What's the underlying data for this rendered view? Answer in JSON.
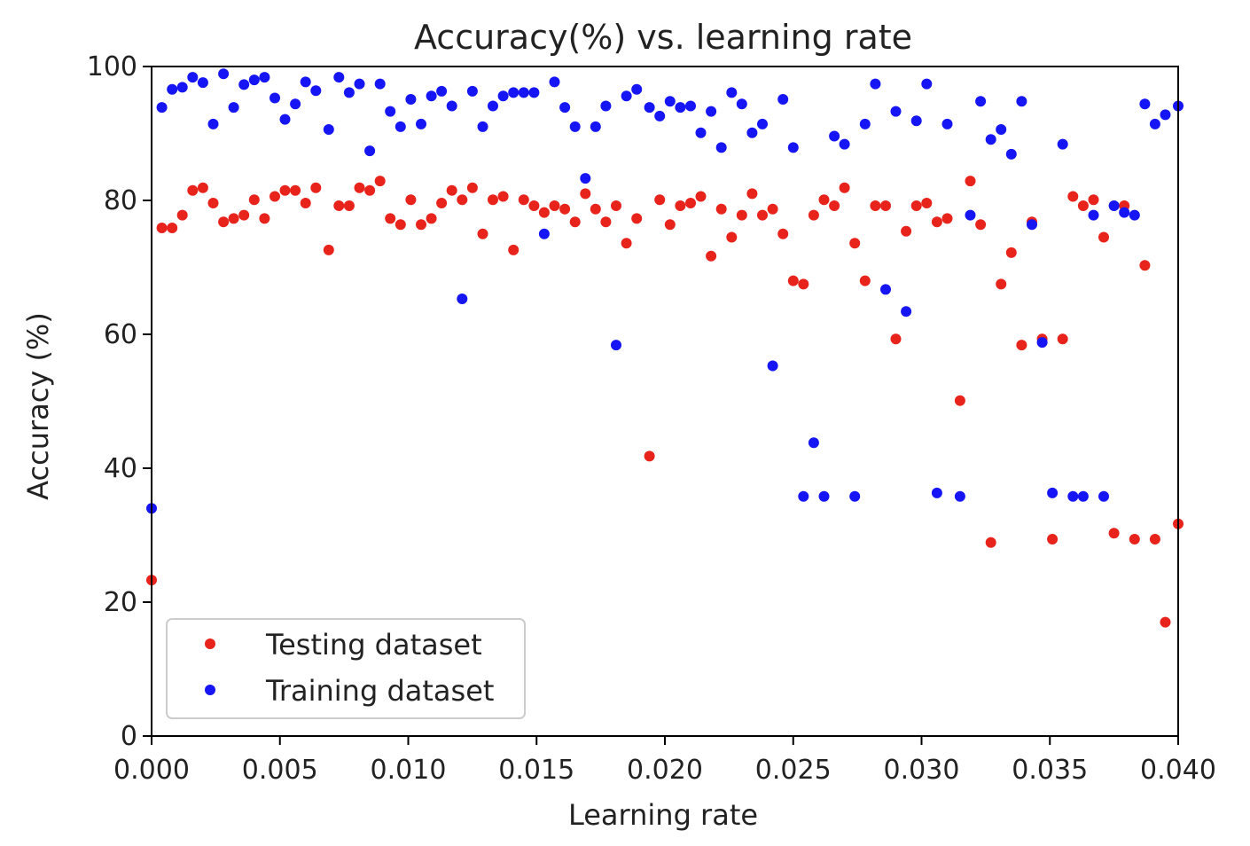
{
  "chart_data": {
    "type": "scatter",
    "title": "Accuracy(%) vs. learning rate",
    "xlabel": "Learning rate",
    "ylabel": "Accuracy (%)",
    "xlim": [
      0,
      0.04
    ],
    "ylim": [
      0,
      100
    ],
    "x_ticks": [
      "0.000",
      "0.005",
      "0.010",
      "0.015",
      "0.020",
      "0.025",
      "0.030",
      "0.035",
      "0.040"
    ],
    "y_ticks": [
      "0",
      "20",
      "40",
      "60",
      "80",
      "100"
    ],
    "grid": false,
    "legend_position": "lower-left",
    "series": [
      {
        "name": "Testing dataset",
        "color": "#e8231c",
        "points": [
          [
            0.0,
            23.3
          ],
          [
            0.0004,
            75.9
          ],
          [
            0.0008,
            75.9
          ],
          [
            0.0012,
            77.8
          ],
          [
            0.0016,
            81.5
          ],
          [
            0.002,
            81.9
          ],
          [
            0.0024,
            79.6
          ],
          [
            0.0028,
            76.8
          ],
          [
            0.0032,
            77.3
          ],
          [
            0.0036,
            77.8
          ],
          [
            0.004,
            80.1
          ],
          [
            0.0044,
            77.3
          ],
          [
            0.0048,
            80.6
          ],
          [
            0.0052,
            81.5
          ],
          [
            0.0056,
            81.5
          ],
          [
            0.006,
            79.6
          ],
          [
            0.0064,
            81.9
          ],
          [
            0.0069,
            72.6
          ],
          [
            0.0073,
            79.2
          ],
          [
            0.0077,
            79.2
          ],
          [
            0.0081,
            81.9
          ],
          [
            0.0085,
            81.5
          ],
          [
            0.0089,
            82.9
          ],
          [
            0.0093,
            77.3
          ],
          [
            0.0097,
            76.4
          ],
          [
            0.0101,
            80.1
          ],
          [
            0.0105,
            76.4
          ],
          [
            0.0109,
            77.3
          ],
          [
            0.0113,
            79.6
          ],
          [
            0.0117,
            81.5
          ],
          [
            0.0121,
            80.1
          ],
          [
            0.0125,
            81.9
          ],
          [
            0.0129,
            75.0
          ],
          [
            0.0133,
            80.1
          ],
          [
            0.0137,
            80.6
          ],
          [
            0.0141,
            72.6
          ],
          [
            0.0145,
            80.1
          ],
          [
            0.0149,
            79.2
          ],
          [
            0.0153,
            78.2
          ],
          [
            0.0157,
            79.2
          ],
          [
            0.0161,
            78.7
          ],
          [
            0.0165,
            76.8
          ],
          [
            0.0169,
            81.0
          ],
          [
            0.0173,
            78.7
          ],
          [
            0.0177,
            76.8
          ],
          [
            0.0181,
            79.2
          ],
          [
            0.0185,
            73.6
          ],
          [
            0.0189,
            77.3
          ],
          [
            0.0194,
            41.8
          ],
          [
            0.0198,
            80.1
          ],
          [
            0.0202,
            76.4
          ],
          [
            0.0206,
            79.2
          ],
          [
            0.021,
            79.6
          ],
          [
            0.0214,
            80.6
          ],
          [
            0.0218,
            71.7
          ],
          [
            0.0222,
            78.7
          ],
          [
            0.0226,
            74.5
          ],
          [
            0.023,
            77.8
          ],
          [
            0.0234,
            81.0
          ],
          [
            0.0238,
            77.8
          ],
          [
            0.0242,
            78.7
          ],
          [
            0.0246,
            75.0
          ],
          [
            0.025,
            68.0
          ],
          [
            0.0254,
            67.5
          ],
          [
            0.0258,
            77.8
          ],
          [
            0.0262,
            80.1
          ],
          [
            0.0266,
            79.2
          ],
          [
            0.027,
            81.9
          ],
          [
            0.0274,
            73.6
          ],
          [
            0.0278,
            68.0
          ],
          [
            0.0282,
            79.2
          ],
          [
            0.0286,
            79.2
          ],
          [
            0.029,
            59.3
          ],
          [
            0.0294,
            75.4
          ],
          [
            0.0298,
            79.2
          ],
          [
            0.0302,
            79.6
          ],
          [
            0.0306,
            76.8
          ],
          [
            0.031,
            77.3
          ],
          [
            0.0315,
            50.1
          ],
          [
            0.0319,
            82.9
          ],
          [
            0.0323,
            76.4
          ],
          [
            0.0327,
            28.9
          ],
          [
            0.0331,
            67.5
          ],
          [
            0.0335,
            72.2
          ],
          [
            0.0339,
            58.4
          ],
          [
            0.0343,
            76.8
          ],
          [
            0.0347,
            59.3
          ],
          [
            0.0351,
            29.4
          ],
          [
            0.0355,
            59.3
          ],
          [
            0.0359,
            80.6
          ],
          [
            0.0363,
            79.2
          ],
          [
            0.0367,
            80.1
          ],
          [
            0.0371,
            74.5
          ],
          [
            0.0375,
            30.3
          ],
          [
            0.0379,
            79.2
          ],
          [
            0.0383,
            29.4
          ],
          [
            0.0387,
            70.3
          ],
          [
            0.0391,
            29.4
          ],
          [
            0.0395,
            17.0
          ],
          [
            0.04,
            31.7
          ]
        ]
      },
      {
        "name": "Training dataset",
        "color": "#1515f5",
        "points": [
          [
            0.0,
            34.0
          ],
          [
            0.0004,
            93.9
          ],
          [
            0.0008,
            96.6
          ],
          [
            0.0012,
            96.9
          ],
          [
            0.0016,
            98.4
          ],
          [
            0.002,
            97.6
          ],
          [
            0.0024,
            91.4
          ],
          [
            0.0028,
            98.9
          ],
          [
            0.0032,
            93.9
          ],
          [
            0.0036,
            97.3
          ],
          [
            0.004,
            98.0
          ],
          [
            0.0044,
            98.4
          ],
          [
            0.0048,
            95.3
          ],
          [
            0.0052,
            92.1
          ],
          [
            0.0056,
            94.4
          ],
          [
            0.006,
            97.7
          ],
          [
            0.0064,
            96.4
          ],
          [
            0.0069,
            90.6
          ],
          [
            0.0073,
            98.4
          ],
          [
            0.0077,
            96.1
          ],
          [
            0.0081,
            97.4
          ],
          [
            0.0085,
            87.4
          ],
          [
            0.0089,
            97.4
          ],
          [
            0.0093,
            93.3
          ],
          [
            0.0097,
            91.0
          ],
          [
            0.0101,
            95.1
          ],
          [
            0.0105,
            91.4
          ],
          [
            0.0109,
            95.6
          ],
          [
            0.0113,
            96.3
          ],
          [
            0.0117,
            94.1
          ],
          [
            0.0121,
            65.3
          ],
          [
            0.0125,
            96.3
          ],
          [
            0.0129,
            91.0
          ],
          [
            0.0133,
            94.1
          ],
          [
            0.0137,
            95.6
          ],
          [
            0.0141,
            96.1
          ],
          [
            0.0145,
            96.1
          ],
          [
            0.0149,
            96.1
          ],
          [
            0.0153,
            75.0
          ],
          [
            0.0157,
            97.7
          ],
          [
            0.0161,
            93.9
          ],
          [
            0.0165,
            91.0
          ],
          [
            0.0169,
            83.3
          ],
          [
            0.0173,
            91.0
          ],
          [
            0.0177,
            94.1
          ],
          [
            0.0181,
            58.4
          ],
          [
            0.0185,
            95.6
          ],
          [
            0.0189,
            96.6
          ],
          [
            0.0194,
            93.9
          ],
          [
            0.0198,
            92.6
          ],
          [
            0.0202,
            94.8
          ],
          [
            0.0206,
            93.9
          ],
          [
            0.021,
            94.1
          ],
          [
            0.0214,
            90.1
          ],
          [
            0.0218,
            93.3
          ],
          [
            0.0222,
            87.9
          ],
          [
            0.0226,
            96.1
          ],
          [
            0.023,
            94.4
          ],
          [
            0.0234,
            90.1
          ],
          [
            0.0238,
            91.4
          ],
          [
            0.0242,
            55.3
          ],
          [
            0.0246,
            95.1
          ],
          [
            0.025,
            87.9
          ],
          [
            0.0254,
            35.8
          ],
          [
            0.0258,
            43.8
          ],
          [
            0.0262,
            35.8
          ],
          [
            0.0266,
            89.6
          ],
          [
            0.027,
            88.4
          ],
          [
            0.0274,
            35.8
          ],
          [
            0.0278,
            91.4
          ],
          [
            0.0282,
            97.4
          ],
          [
            0.0286,
            66.7
          ],
          [
            0.029,
            93.3
          ],
          [
            0.0294,
            63.4
          ],
          [
            0.0298,
            91.9
          ],
          [
            0.0302,
            97.4
          ],
          [
            0.0306,
            36.3
          ],
          [
            0.031,
            91.4
          ],
          [
            0.0315,
            35.8
          ],
          [
            0.0319,
            77.8
          ],
          [
            0.0323,
            94.8
          ],
          [
            0.0327,
            89.1
          ],
          [
            0.0331,
            90.6
          ],
          [
            0.0335,
            86.9
          ],
          [
            0.0339,
            94.8
          ],
          [
            0.0343,
            76.4
          ],
          [
            0.0347,
            58.8
          ],
          [
            0.0351,
            36.3
          ],
          [
            0.0355,
            88.4
          ],
          [
            0.0359,
            35.8
          ],
          [
            0.0363,
            35.8
          ],
          [
            0.0367,
            77.8
          ],
          [
            0.0371,
            35.8
          ],
          [
            0.0375,
            79.2
          ],
          [
            0.0379,
            78.2
          ],
          [
            0.0383,
            77.8
          ],
          [
            0.0387,
            94.4
          ],
          [
            0.0391,
            91.4
          ],
          [
            0.0395,
            92.8
          ],
          [
            0.04,
            94.1
          ]
        ]
      }
    ]
  }
}
